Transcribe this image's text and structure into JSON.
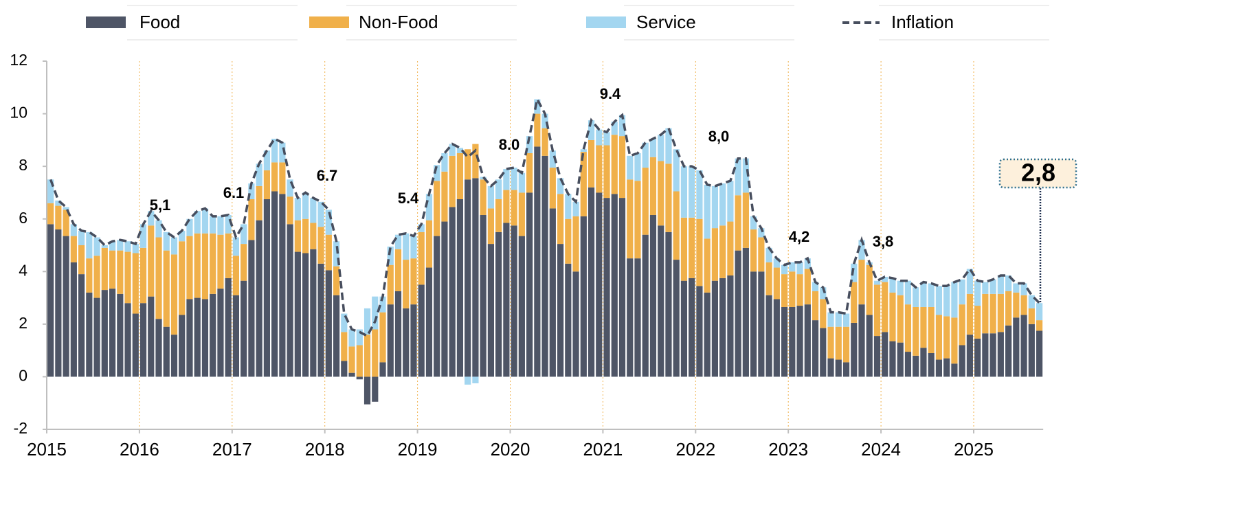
{
  "chart_data": {
    "type": "bar",
    "stacked": true,
    "categories": [
      "2015",
      null,
      null,
      null,
      null,
      null,
      null,
      null,
      null,
      null,
      null,
      null,
      "2016",
      null,
      null,
      null,
      null,
      null,
      null,
      null,
      null,
      null,
      null,
      null,
      "2017",
      null,
      null,
      null,
      null,
      null,
      null,
      null,
      null,
      null,
      null,
      null,
      "2018",
      null,
      null,
      null,
      null,
      null,
      null,
      null,
      null,
      null,
      null,
      null,
      "2019",
      null,
      null,
      null,
      null,
      null,
      null,
      null,
      null,
      null,
      null,
      null,
      "2020",
      null,
      null,
      null,
      null,
      null,
      null,
      null,
      null,
      null,
      null,
      null,
      "2021",
      null,
      null,
      null,
      null,
      null,
      null,
      null,
      null,
      null,
      null,
      null,
      "2022",
      null,
      null,
      null,
      null,
      null,
      null,
      null,
      null,
      null,
      null,
      null,
      "2023",
      null,
      null,
      null,
      null,
      null,
      null,
      null,
      null,
      null,
      null,
      null,
      "2024",
      null,
      null,
      null,
      null,
      null,
      null,
      null,
      null,
      null,
      null,
      null,
      "2025",
      null,
      null,
      null,
      null,
      null,
      null,
      null,
      null
    ],
    "series": [
      {
        "name": "Food",
        "color": "#4e5566",
        "values": [
          5.8,
          5.6,
          5.35,
          4.35,
          3.9,
          3.2,
          3.0,
          3.3,
          3.35,
          3.15,
          2.8,
          2.4,
          2.8,
          3.05,
          2.2,
          1.9,
          1.6,
          2.35,
          2.95,
          3.0,
          2.95,
          3.15,
          3.35,
          3.75,
          3.1,
          3.65,
          5.2,
          5.95,
          6.75,
          7.05,
          6.95,
          5.8,
          4.75,
          4.7,
          4.85,
          4.3,
          4.05,
          3.1,
          0.6,
          0.15,
          -0.1,
          -1.05,
          -0.95,
          0.55,
          2.75,
          3.25,
          2.6,
          2.75,
          3.5,
          4.15,
          5.35,
          5.9,
          6.45,
          6.75,
          7.5,
          7.55,
          6.15,
          5.05,
          5.5,
          5.85,
          5.75,
          5.35,
          7.0,
          8.75,
          8.4,
          6.4,
          5.05,
          4.3,
          4.0,
          6.1,
          7.2,
          7.0,
          6.8,
          6.95,
          6.8,
          4.5,
          4.5,
          5.4,
          6.15,
          5.75,
          5.5,
          4.45,
          3.65,
          3.75,
          3.45,
          3.2,
          3.65,
          3.75,
          3.85,
          4.8,
          4.9,
          4.0,
          4.0,
          3.1,
          2.95,
          2.65,
          2.65,
          2.7,
          2.75,
          2.15,
          1.85,
          0.7,
          0.65,
          0.55,
          2.05,
          2.75,
          2.35,
          1.55,
          1.7,
          1.35,
          1.3,
          0.95,
          0.8,
          1.1,
          0.9,
          0.65,
          0.7,
          0.5,
          1.2,
          1.6,
          1.45,
          1.65,
          1.65,
          1.7,
          1.95,
          2.25,
          2.35,
          2.0,
          1.75
        ]
      },
      {
        "name": "Non-Food",
        "color": "#f0b04a",
        "values": [
          0.8,
          0.9,
          1.0,
          1.0,
          1.1,
          1.3,
          1.6,
          1.6,
          1.45,
          1.65,
          1.95,
          2.3,
          2.1,
          2.7,
          3.1,
          2.9,
          3.05,
          2.8,
          2.4,
          2.45,
          2.5,
          2.3,
          2.05,
          1.7,
          1.5,
          1.4,
          1.55,
          1.3,
          1.1,
          1.1,
          1.2,
          1.05,
          1.2,
          1.3,
          1.0,
          1.4,
          1.35,
          1.1,
          1.1,
          1.0,
          1.2,
          1.6,
          1.8,
          1.9,
          1.5,
          1.6,
          1.85,
          1.75,
          2.0,
          1.8,
          2.1,
          1.9,
          1.95,
          1.75,
          1.15,
          1.3,
          1.35,
          1.35,
          1.25,
          1.25,
          1.35,
          1.65,
          1.5,
          1.25,
          1.05,
          1.55,
          1.9,
          1.7,
          2.1,
          2.45,
          1.8,
          1.8,
          2.0,
          2.25,
          2.35,
          3.0,
          2.95,
          2.55,
          2.2,
          2.45,
          2.6,
          2.6,
          2.4,
          2.3,
          2.55,
          2.05,
          2.0,
          2.0,
          2.05,
          2.1,
          2.1,
          1.6,
          1.3,
          1.25,
          1.2,
          1.25,
          1.35,
          1.2,
          1.35,
          1.1,
          1.1,
          1.2,
          1.25,
          1.35,
          1.55,
          1.7,
          1.9,
          1.95,
          1.9,
          1.85,
          1.8,
          1.8,
          1.85,
          1.55,
          1.75,
          1.7,
          1.6,
          1.75,
          1.55,
          1.55,
          1.25,
          1.5,
          1.5,
          1.45,
          1.3,
          0.95,
          0.75,
          0.6,
          0.4
        ]
      },
      {
        "name": "Service",
        "color": "#a3d6f0",
        "values": [
          0.9,
          0.2,
          0.1,
          0.45,
          0.55,
          1.0,
          0.7,
          0.1,
          0.35,
          0.4,
          0.4,
          0.35,
          0.9,
          0.55,
          0.65,
          0.7,
          0.65,
          0.4,
          0.65,
          0.85,
          0.95,
          0.65,
          0.7,
          0.7,
          0.7,
          0.75,
          0.6,
          0.85,
          0.75,
          0.9,
          0.75,
          0.65,
          0.85,
          1.0,
          0.95,
          0.95,
          0.95,
          0.95,
          0.7,
          0.65,
          0.6,
          1.0,
          1.25,
          0.6,
          0.7,
          0.55,
          1.0,
          0.85,
          0.3,
          1.0,
          0.6,
          0.7,
          0.45,
          0.2,
          -0.3,
          -0.25,
          0.1,
          0.85,
          0.75,
          0.8,
          0.85,
          0.75,
          0.65,
          0.55,
          0.55,
          0.65,
          0.6,
          0.95,
          0.55,
          0.1,
          0.75,
          0.6,
          0.5,
          0.5,
          0.8,
          0.9,
          1.05,
          0.95,
          0.7,
          1.0,
          1.35,
          1.6,
          1.95,
          1.95,
          1.85,
          2.05,
          1.6,
          1.6,
          1.55,
          1.4,
          1.3,
          0.5,
          0.35,
          0.55,
          0.35,
          0.35,
          0.35,
          0.45,
          0.4,
          0.35,
          0.45,
          0.55,
          0.55,
          0.5,
          0.7,
          0.75,
          0.1,
          0.15,
          0.2,
          0.55,
          0.55,
          0.9,
          0.75,
          0.95,
          0.9,
          1.1,
          1.15,
          1.35,
          0.95,
          0.95,
          0.95,
          0.45,
          0.55,
          0.7,
          0.6,
          0.35,
          0.45,
          0.5,
          0.65
        ]
      },
      {
        "name": "Inflation",
        "type": "line",
        "color": "#474e5e",
        "values": [
          7.5,
          6.7,
          6.45,
          5.8,
          5.55,
          5.5,
          5.3,
          5.0,
          5.15,
          5.2,
          5.15,
          5.05,
          5.8,
          6.3,
          5.95,
          5.5,
          5.3,
          5.55,
          6.0,
          6.3,
          6.4,
          6.1,
          6.1,
          6.15,
          5.3,
          5.8,
          7.35,
          8.1,
          8.6,
          9.05,
          8.9,
          7.5,
          6.8,
          7.0,
          6.8,
          6.65,
          6.35,
          5.15,
          2.4,
          1.8,
          1.7,
          1.55,
          2.1,
          3.05,
          4.95,
          5.4,
          5.45,
          5.35,
          5.8,
          6.95,
          8.05,
          8.5,
          8.85,
          8.7,
          8.35,
          8.6,
          7.6,
          7.25,
          7.5,
          7.9,
          7.95,
          7.75,
          9.15,
          10.55,
          10.0,
          8.6,
          7.55,
          6.95,
          6.65,
          8.65,
          9.75,
          9.4,
          9.3,
          9.7,
          9.95,
          8.4,
          8.5,
          8.9,
          9.05,
          9.2,
          9.45,
          8.65,
          8.0,
          8.0,
          7.85,
          7.3,
          7.25,
          7.35,
          7.45,
          8.3,
          8.3,
          6.1,
          5.65,
          4.9,
          4.5,
          4.25,
          4.35,
          4.35,
          4.5,
          3.6,
          3.4,
          2.45,
          2.45,
          2.4,
          4.3,
          5.2,
          4.35,
          3.65,
          3.8,
          3.75,
          3.65,
          3.65,
          3.4,
          3.6,
          3.55,
          3.45,
          3.45,
          3.6,
          3.7,
          4.1,
          3.65,
          3.6,
          3.7,
          3.85,
          3.85,
          3.55,
          3.55,
          3.1,
          2.8
        ]
      }
    ],
    "annotations": [
      "5,1",
      "6.1",
      "6.7",
      "5.4",
      "8.0",
      "9.4",
      "8,0",
      "4,2",
      "3,8",
      "2,8"
    ],
    "ylim": [
      -2,
      12
    ],
    "yticks": [
      -2,
      0,
      2,
      4,
      6,
      8,
      10,
      12
    ],
    "legend": "top"
  }
}
